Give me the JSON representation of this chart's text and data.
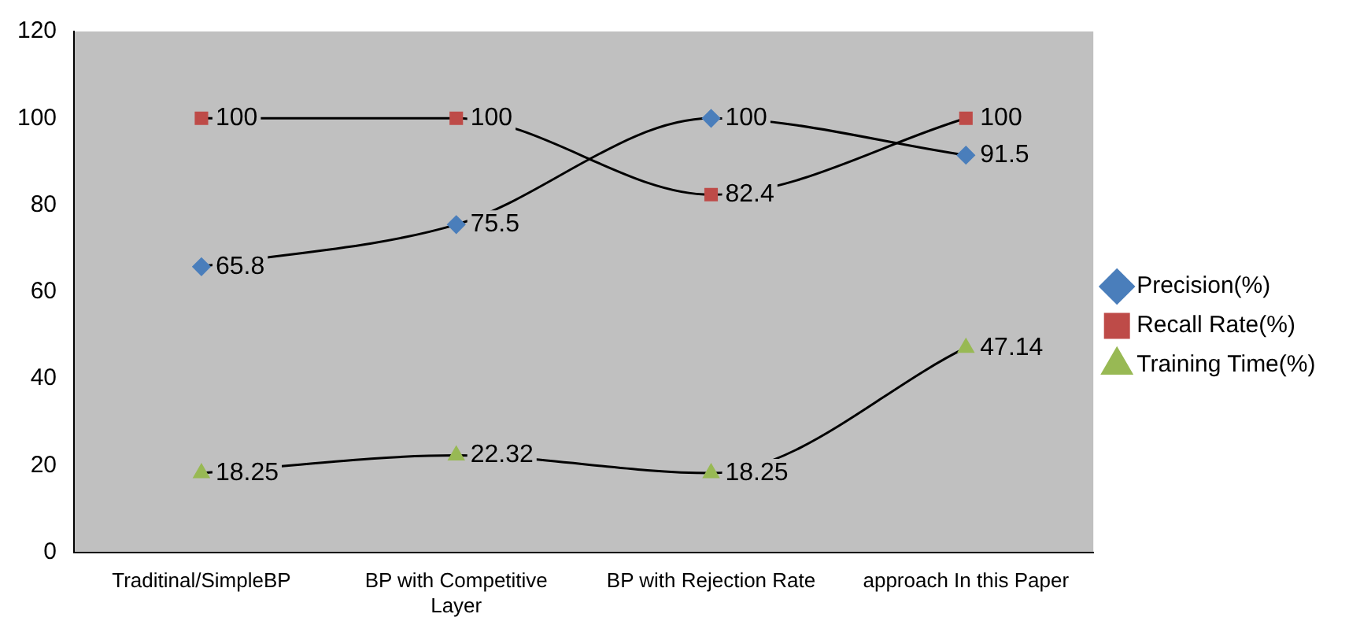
{
  "chart_data": {
    "type": "line",
    "categories": [
      "Traditinal/SimpleBP",
      "BP with Competitive Layer",
      "BP with Rejection Rate",
      "approach In this Paper"
    ],
    "series": [
      {
        "name": "Precision(%)",
        "color": "#4a7ebb",
        "marker": "diamond",
        "values": [
          65.8,
          75.5,
          100,
          91.5
        ]
      },
      {
        "name": "Recall Rate(%)",
        "color": "#be4b48",
        "marker": "square",
        "values": [
          100,
          100,
          82.4,
          100
        ]
      },
      {
        "name": "Training Time(%)",
        "color": "#98b954",
        "marker": "triangle",
        "values": [
          18.25,
          22.32,
          18.25,
          47.14
        ]
      }
    ],
    "ylim": [
      0,
      120
    ],
    "yticks": [
      0,
      20,
      40,
      60,
      80,
      100,
      120
    ],
    "grid": false,
    "legend": "right",
    "data_labels": true
  }
}
